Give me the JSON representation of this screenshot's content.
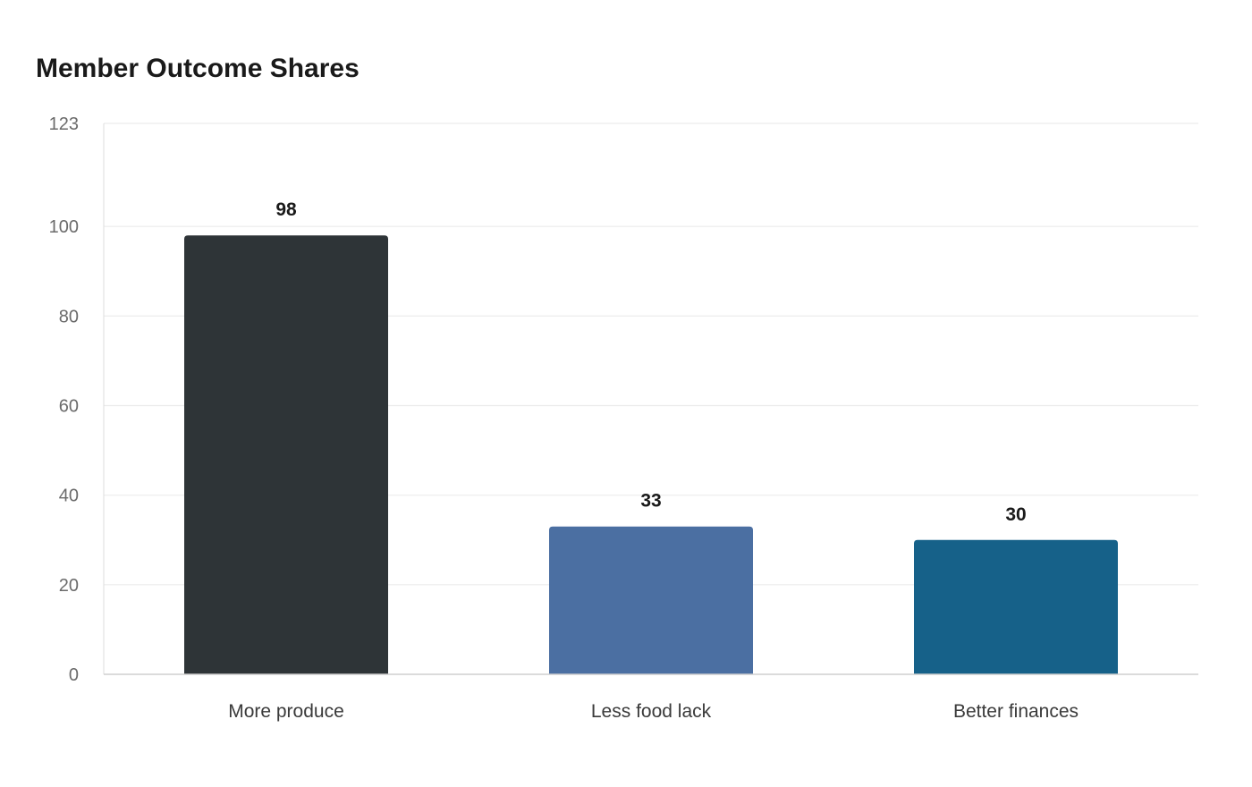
{
  "chart_data": {
    "type": "bar",
    "title": "Member Outcome Shares",
    "xlabel": "",
    "ylabel": "",
    "categories": [
      "More produce",
      "Less food lack",
      "Better finances"
    ],
    "values": [
      98,
      33,
      30
    ],
    "data_labels": [
      "98",
      "33",
      "30"
    ],
    "colors": [
      "#2e3437",
      "#4b6fa2",
      "#166189"
    ],
    "ylim": [
      0,
      123
    ],
    "yticks": [
      0,
      20,
      40,
      60,
      80,
      100,
      123
    ],
    "grid": true,
    "legend": "none"
  }
}
